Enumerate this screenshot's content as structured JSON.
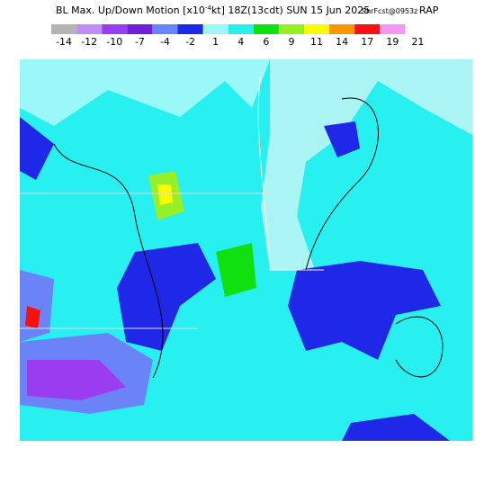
{
  "header": {
    "title": "BL Max. Up/Down Motion [x10",
    "title_exponent": "-4",
    "title_rest": "kt] 18Z(13cdt) SUN 15 Jun 2025",
    "forecast": "9hrFcst@0953z",
    "model": "RAP"
  },
  "colorbar": {
    "labels": [
      -14,
      -12,
      -10,
      -7,
      -4,
      -2,
      1,
      4,
      6,
      9,
      11,
      14,
      17,
      19,
      21
    ],
    "colors": [
      "#b4b4b4",
      "#c08cf8",
      "#9a3cf0",
      "#7020d8",
      "#6a84f8",
      "#1e28e6",
      "#9af8f8",
      "#28f0f0",
      "#10e010",
      "#96f028",
      "#fafa00",
      "#f89600",
      "#f81010",
      "#f896f8",
      "#ffffff"
    ]
  }
}
